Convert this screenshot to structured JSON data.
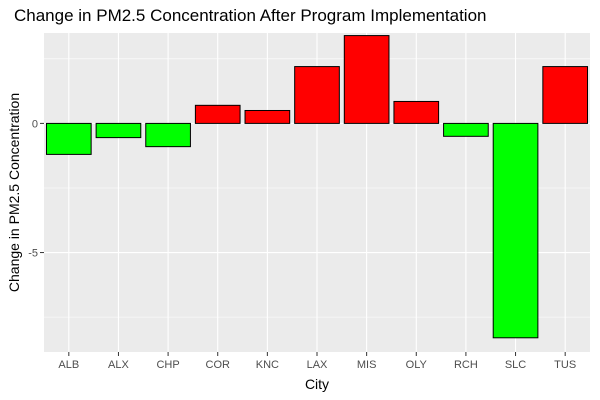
{
  "chart_data": {
    "type": "bar",
    "title": "Change in PM2.5 Concentration After Program Implementation",
    "xlabel": "City",
    "ylabel": "Change in PM2.5 Concentration",
    "categories": [
      "ALB",
      "ALX",
      "CHP",
      "COR",
      "KNC",
      "LAX",
      "MIS",
      "OLY",
      "RCH",
      "SLC",
      "TUS"
    ],
    "values": [
      -1.2,
      -0.55,
      -0.9,
      0.7,
      0.5,
      2.2,
      3.4,
      0.85,
      -0.5,
      -8.3,
      2.2
    ],
    "ylim": [
      -8.85,
      3.5
    ],
    "yticks": [
      0,
      -5
    ],
    "grid": true,
    "legend": "none",
    "colors": {
      "negative": "#00ff00",
      "positive": "#ff0000",
      "bar_outline": "#000000",
      "panel": "#ebebeb",
      "grid": "#ffffff"
    }
  }
}
